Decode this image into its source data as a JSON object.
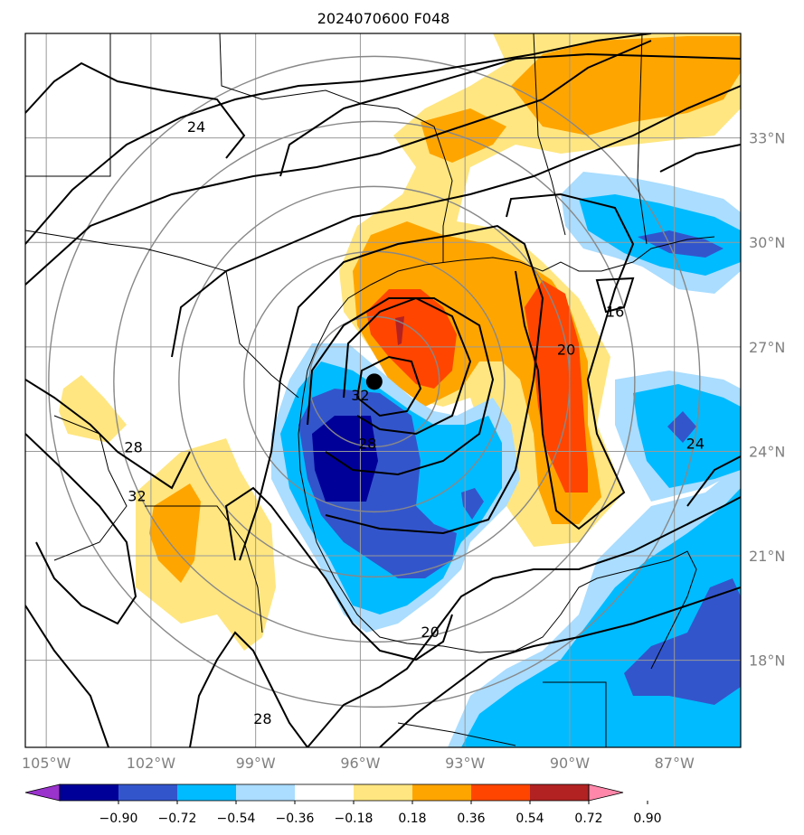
{
  "title": "2024070600 F048",
  "map": {
    "lon_range": [
      -105.6,
      -85.1
    ],
    "lat_range": [
      15.5,
      36.0
    ],
    "lon_ticks": [
      {
        "value": -105,
        "label": "105°W"
      },
      {
        "value": -102,
        "label": "102°W"
      },
      {
        "value": -99,
        "label": "99°W"
      },
      {
        "value": -96,
        "label": "96°W"
      },
      {
        "value": -93,
        "label": "93°W"
      },
      {
        "value": -90,
        "label": "90°W"
      },
      {
        "value": -87,
        "label": "87°W"
      }
    ],
    "lat_ticks": [
      {
        "value": 33,
        "label": "33°N"
      },
      {
        "value": 30,
        "label": "30°N"
      },
      {
        "value": 27,
        "label": "27°N"
      },
      {
        "value": 24,
        "label": "24°N"
      },
      {
        "value": 21,
        "label": "21°N"
      },
      {
        "value": 18,
        "label": "18°N"
      }
    ],
    "gridlines": true,
    "storm_center": {
      "lon": -95.6,
      "lat": 26.0
    },
    "range_rings_center": {
      "lon": -95.6,
      "lat": 26.0
    },
    "range_rings_count": 5,
    "contour_labels": [
      {
        "text": "24",
        "lon": -100.7,
        "lat": 33.3
      },
      {
        "text": "16",
        "lon": -88.7,
        "lat": 28.0
      },
      {
        "text": "20",
        "lon": -90.1,
        "lat": 26.9
      },
      {
        "text": "32",
        "lon": -96.0,
        "lat": 25.6
      },
      {
        "text": "28",
        "lon": -95.8,
        "lat": 24.2
      },
      {
        "text": "28",
        "lon": -102.5,
        "lat": 24.1
      },
      {
        "text": "32",
        "lon": -102.4,
        "lat": 22.7
      },
      {
        "text": "24",
        "lon": -86.4,
        "lat": 24.2
      },
      {
        "text": "20",
        "lon": -94.0,
        "lat": 18.8
      },
      {
        "text": "28",
        "lon": -98.8,
        "lat": 16.3
      }
    ]
  },
  "colorbar": {
    "ticks": [
      "−0.90",
      "−0.72",
      "−0.54",
      "−0.36",
      "−0.18",
      "0.18",
      "0.36",
      "0.54",
      "0.72",
      "0.90"
    ],
    "colors": [
      "#9933cc",
      "#000099",
      "#3355cc",
      "#00bbff",
      "#aaddff",
      "#ffffff",
      "#ffe680",
      "#ffa500",
      "#ff4500",
      "#b22222",
      "#ff88aa"
    ]
  },
  "shading_colors": {
    "neg_090": "#000099",
    "neg_072": "#3355cc",
    "neg_054": "#00bbff",
    "neg_036": "#aaddff",
    "pos_018": "#ffe680",
    "pos_036": "#ffa500",
    "pos_054": "#ff4500",
    "pos_072": "#b22222"
  }
}
